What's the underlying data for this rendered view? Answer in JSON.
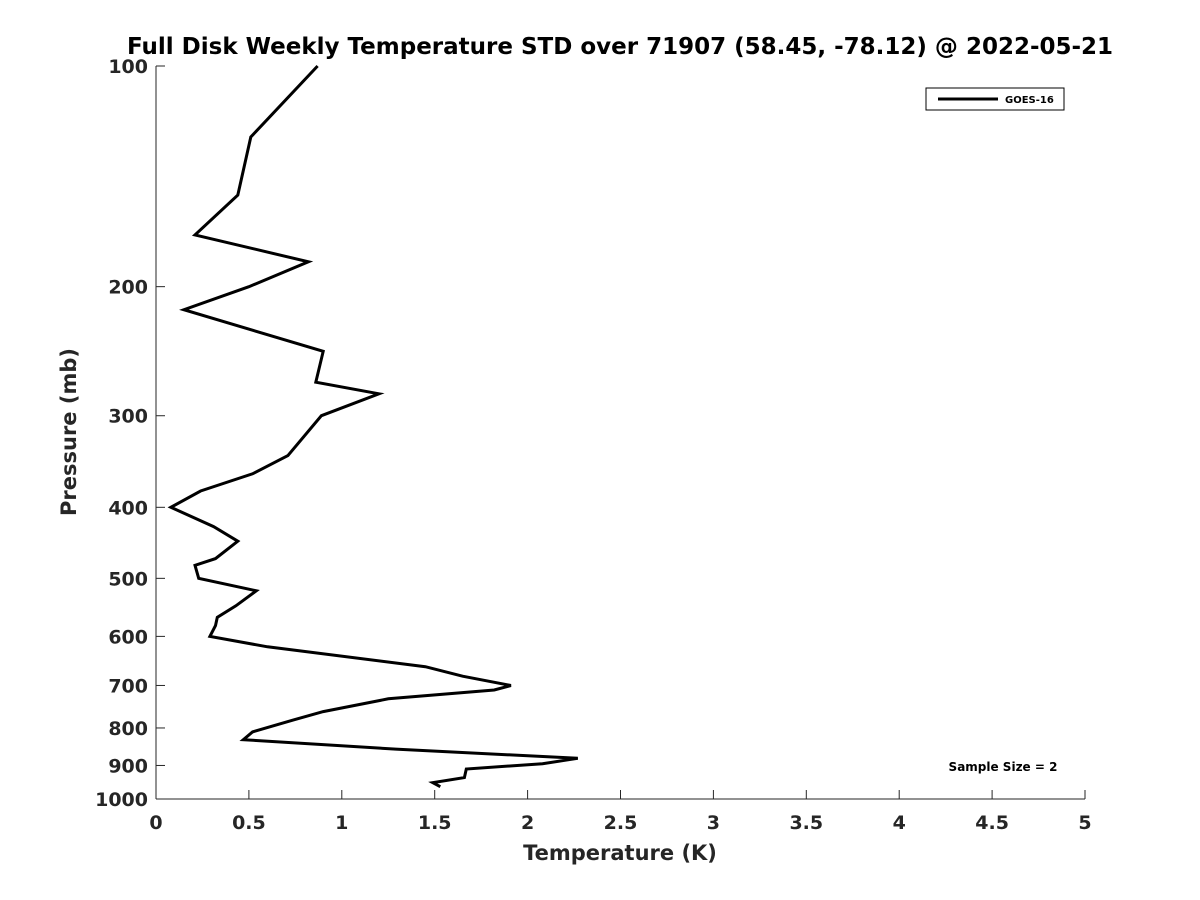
{
  "chart_data": {
    "type": "line",
    "title": "Full Disk Weekly Temperature STD over 71907 (58.45, -78.12) @ 2022-05-21",
    "xlabel": "Temperature (K)",
    "ylabel": "Pressure (mb)",
    "xlim": [
      0,
      5
    ],
    "ylim": [
      100,
      1000
    ],
    "y_scale": "log",
    "y_reversed": true,
    "x_ticks": [
      0,
      0.5,
      1,
      1.5,
      2,
      2.5,
      3,
      3.5,
      4,
      4.5,
      5
    ],
    "x_tick_labels": [
      "0",
      "0.5",
      "1",
      "1.5",
      "2",
      "2.5",
      "3",
      "3.5",
      "4",
      "4.5",
      "5"
    ],
    "y_ticks": [
      100,
      200,
      300,
      400,
      500,
      600,
      700,
      800,
      900,
      1000
    ],
    "y_tick_labels": [
      "100",
      "200",
      "300",
      "400",
      "500",
      "600",
      "700",
      "800",
      "900",
      "1000"
    ],
    "grid": false,
    "legend_position": "top-right",
    "series": [
      {
        "name": "GOES-16",
        "color": "#000000",
        "points": [
          [
            0.87,
            100
          ],
          [
            0.51,
            125
          ],
          [
            0.44,
            150
          ],
          [
            0.21,
            170
          ],
          [
            0.82,
            185
          ],
          [
            0.5,
            200
          ],
          [
            0.15,
            215
          ],
          [
            0.9,
            245
          ],
          [
            0.86,
            270
          ],
          [
            1.2,
            280
          ],
          [
            0.89,
            300
          ],
          [
            0.71,
            340
          ],
          [
            0.52,
            360
          ],
          [
            0.24,
            380
          ],
          [
            0.08,
            400
          ],
          [
            0.31,
            425
          ],
          [
            0.44,
            445
          ],
          [
            0.32,
            470
          ],
          [
            0.21,
            480
          ],
          [
            0.23,
            500
          ],
          [
            0.54,
            520
          ],
          [
            0.43,
            545
          ],
          [
            0.33,
            565
          ],
          [
            0.32,
            580
          ],
          [
            0.29,
            600
          ],
          [
            0.6,
            620
          ],
          [
            1.45,
            660
          ],
          [
            1.65,
            680
          ],
          [
            1.91,
            700
          ],
          [
            1.82,
            710
          ],
          [
            1.25,
            730
          ],
          [
            0.9,
            760
          ],
          [
            0.74,
            780
          ],
          [
            0.52,
            810
          ],
          [
            0.47,
            830
          ],
          [
            1.29,
            855
          ],
          [
            2.27,
            880
          ],
          [
            2.08,
            895
          ],
          [
            1.67,
            910
          ],
          [
            1.66,
            935
          ],
          [
            1.49,
            950
          ],
          [
            1.53,
            962
          ]
        ]
      }
    ],
    "annotation": "Sample Size = 2"
  }
}
